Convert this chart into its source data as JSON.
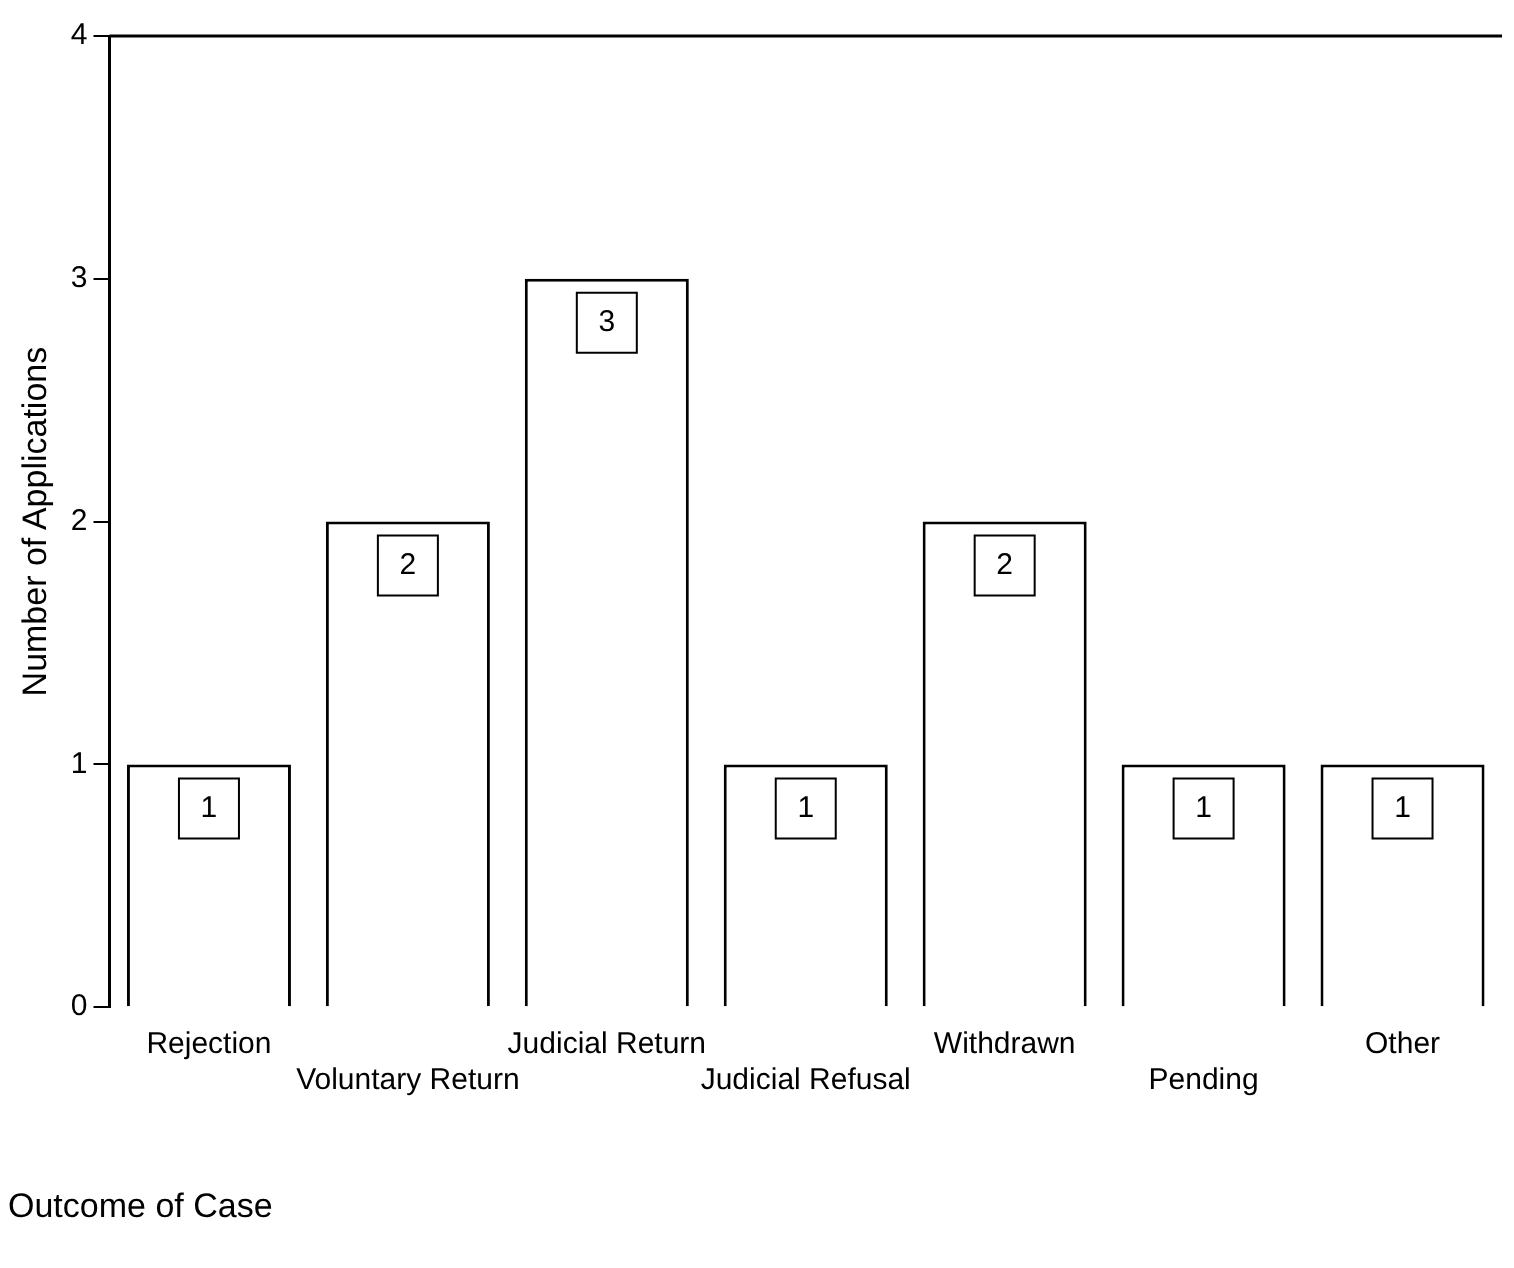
{
  "chart_data": {
    "type": "bar",
    "xlabel": "Outcome of Case",
    "ylabel": "Number of Applications",
    "categories": [
      "Rejection",
      "Voluntary Return",
      "Judicial Return",
      "Judicial Refusal",
      "Withdrawn",
      "Pending",
      "Other"
    ],
    "values": [
      1,
      2,
      3,
      1,
      2,
      1,
      1
    ],
    "color": "#ffffff",
    "ylim": [
      0,
      4
    ],
    "yticks": [
      0,
      1,
      2,
      3,
      4
    ],
    "grid": false,
    "legend": false,
    "data_labels": true
  }
}
